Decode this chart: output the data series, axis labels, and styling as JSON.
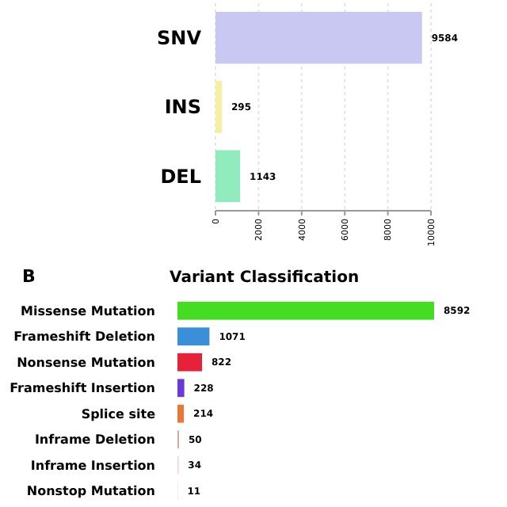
{
  "chart_data": [
    {
      "type": "bar",
      "orientation": "horizontal",
      "categories": [
        "SNV",
        "INS",
        "DEL"
      ],
      "values": [
        9584,
        295,
        1143
      ],
      "colors": [
        "#c8c8f2",
        "#f5f0a0",
        "#90ecbc"
      ],
      "xlim": [
        0,
        10000
      ],
      "xticks": [
        0,
        2000,
        4000,
        6000,
        8000,
        10000
      ],
      "grid": "x",
      "data_labels": true
    },
    {
      "type": "bar",
      "orientation": "horizontal",
      "title": "Variant Classification",
      "annotations": [
        "B"
      ],
      "categories": [
        "Missense Mutation",
        "Frameshift Deletion",
        "Nonsense Mutation",
        "Frameshift Insertion",
        "Splice site",
        "Inframe Deletion",
        "Inframe Insertion",
        "Nonstop Mutation"
      ],
      "values": [
        8592,
        1071,
        822,
        228,
        214,
        50,
        34,
        11
      ],
      "colors": [
        "#44dd22",
        "#3a8fd8",
        "#e8203a",
        "#6a3ad8",
        "#e8783a",
        "#c8a8a0",
        "#f0c8d8",
        "#d8d8d8"
      ],
      "data_labels": true
    }
  ]
}
